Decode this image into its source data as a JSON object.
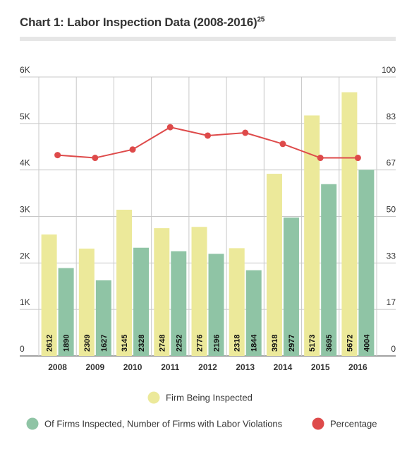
{
  "header": {
    "title": "Chart 1: Labor Inspection Data (2008-2016)",
    "footnote": "25"
  },
  "chart_data": {
    "type": "bar",
    "title": "Chart 1: Labor Inspection Data (2008-2016)",
    "categories": [
      "2008",
      "2009",
      "2010",
      "2011",
      "2012",
      "2013",
      "2014",
      "2015",
      "2016"
    ],
    "y_left": {
      "ticks": [
        "0",
        "1K",
        "2K",
        "3K",
        "4K",
        "5K",
        "6K"
      ],
      "range": [
        0,
        6000
      ]
    },
    "y_right": {
      "ticks": [
        "0",
        "17",
        "33",
        "50",
        "67",
        "83",
        "100"
      ],
      "range": [
        0,
        100
      ]
    },
    "series": [
      {
        "name": "Firm Being Inspected",
        "kind": "bar",
        "axis": "left",
        "color": "#ece99a",
        "values": [
          2612,
          2309,
          3145,
          2748,
          2776,
          2318,
          3918,
          5173,
          5672
        ]
      },
      {
        "name": "Of Firms Inspected, Number of Firms with Labor Violations",
        "kind": "bar",
        "axis": "left",
        "color": "#8fc4a5",
        "values": [
          1890,
          1627,
          2328,
          2252,
          2196,
          1844,
          2977,
          3695,
          4004
        ]
      },
      {
        "name": "Percentage",
        "kind": "line",
        "axis": "right",
        "color": "#de4a4a",
        "values": [
          72,
          71,
          74,
          82,
          79,
          80,
          76,
          71,
          71
        ]
      }
    ],
    "grid": true,
    "legend_placement": "bottom"
  },
  "legend": [
    {
      "label": "Firm Being Inspected",
      "color": "#ece99a"
    },
    {
      "label": "Of Firms Inspected, Number of Firms with Labor Violations",
      "color": "#8fc4a5"
    },
    {
      "label": "Percentage",
      "color": "#de4a4a"
    }
  ]
}
